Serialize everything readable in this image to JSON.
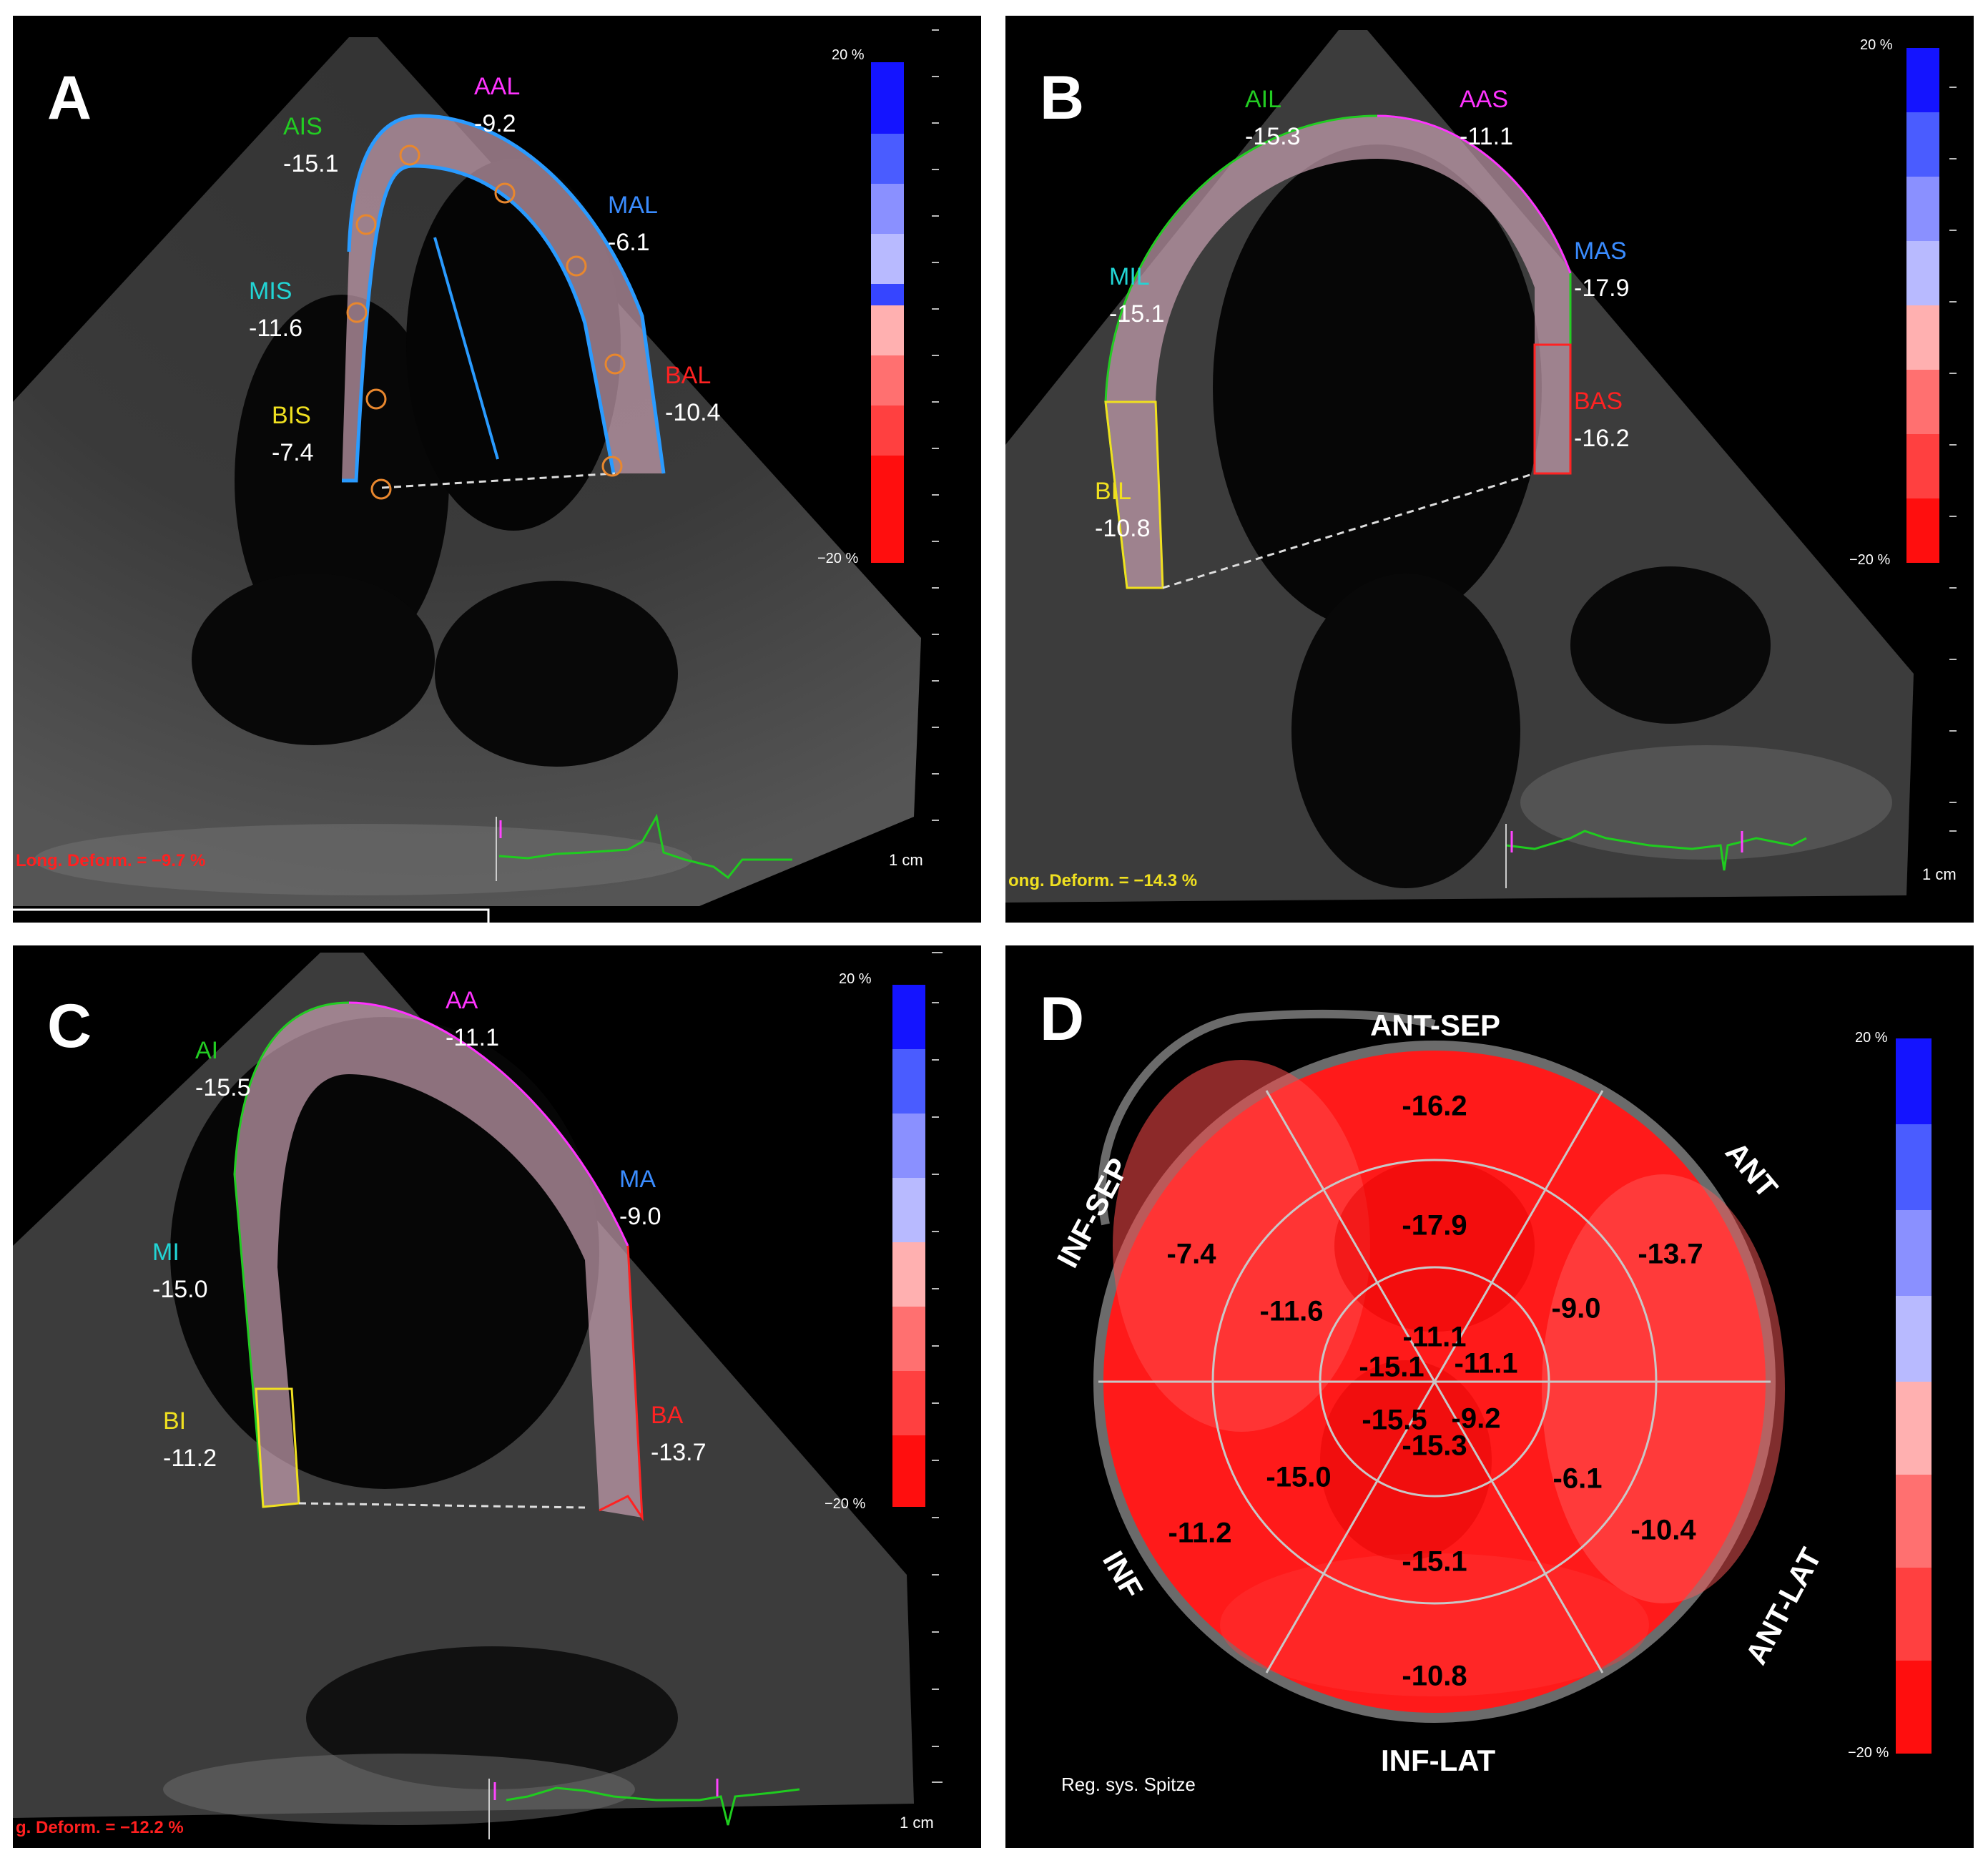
{
  "colors": {
    "anterior": "#22cc22",
    "apical": "#ff33ff",
    "mid_lateral": "#3a8cff",
    "basal_lateral": "#ff2222",
    "mid_septal": "#22d5d5",
    "basal_septal": "#f0e020",
    "gls_A": "#ff2020",
    "gls_B": "#f0e020",
    "gls_C": "#ff2020"
  },
  "panelA": {
    "letter": "A",
    "segments": [
      {
        "name": "AIS",
        "value": "-15.1"
      },
      {
        "name": "AAL",
        "value": "-9.2"
      },
      {
        "name": "MAL",
        "value": "-6.1"
      },
      {
        "name": "MIS",
        "value": "-11.6"
      },
      {
        "name": "BAL",
        "value": "-10.4"
      },
      {
        "name": "BIS",
        "value": "-7.4"
      }
    ],
    "scale_top": "20 %",
    "scale_bottom": "−20 %",
    "cm": "1 cm",
    "gls": "Long. Deform. = −9.7 %"
  },
  "panelB": {
    "letter": "B",
    "segments": [
      {
        "name": "AIL",
        "value": "-15.3"
      },
      {
        "name": "AAS",
        "value": "-11.1"
      },
      {
        "name": "MAS",
        "value": "-17.9"
      },
      {
        "name": "MIL",
        "value": "-15.1"
      },
      {
        "name": "BAS",
        "value": "-16.2"
      },
      {
        "name": "BIL",
        "value": "-10.8"
      }
    ],
    "scale_top": "20 %",
    "scale_bottom": "−20 %",
    "cm": "1 cm",
    "gls": "ong. Deform. = −14.3 %"
  },
  "panelC": {
    "letter": "C",
    "segments": [
      {
        "name": "AI",
        "value": "-15.5"
      },
      {
        "name": "AA",
        "value": "-11.1"
      },
      {
        "name": "MA",
        "value": "-9.0"
      },
      {
        "name": "MI",
        "value": "-15.0"
      },
      {
        "name": "BA",
        "value": "-13.7"
      },
      {
        "name": "BI",
        "value": "-11.2"
      }
    ],
    "scale_top": "20 %",
    "scale_bottom": "−20 %",
    "cm": "1 cm",
    "gls": "g. Deform. = −12.2 %"
  },
  "panelD": {
    "letter": "D",
    "walls": [
      "ANT-SEP",
      "ANT",
      "ANT-LAT",
      "INF-LAT",
      "INF",
      "INF-SEP"
    ],
    "basal": [
      "-16.2",
      "-13.7",
      "-10.4",
      "-10.8",
      "-11.2",
      "-7.4"
    ],
    "mid": [
      "-17.9",
      "-9.0",
      "-6.1",
      "-15.1",
      "-15.0",
      "-11.6"
    ],
    "apical": [
      "-11.1",
      "-11.1",
      "-9.2",
      "-15.3",
      "-15.5",
      "-15.1"
    ],
    "scale_top": "20 %",
    "scale_bottom": "−20 %",
    "footer": "Reg. sys. Spitze"
  }
}
